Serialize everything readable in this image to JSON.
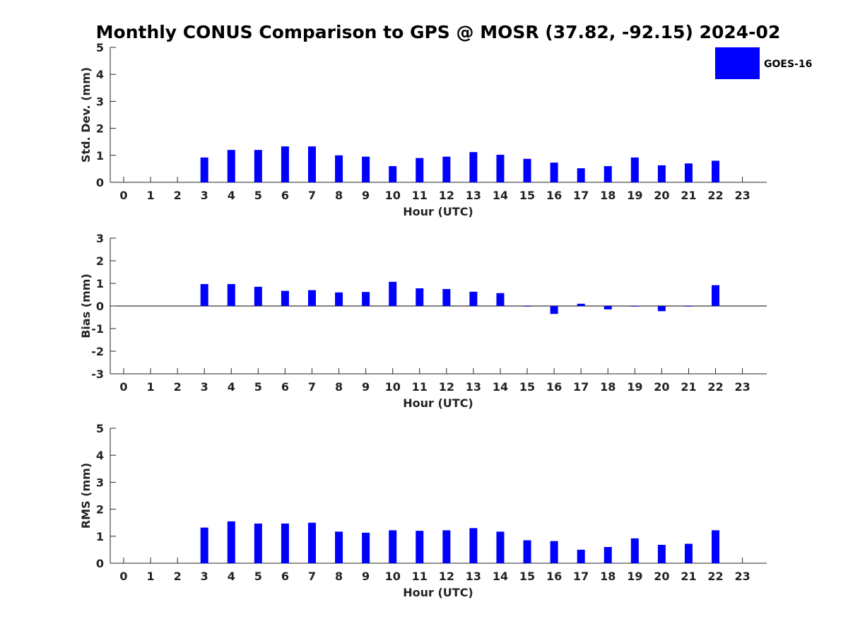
{
  "chart_data": {
    "title": "Monthly CONUS Comparison to GPS @ MOSR (37.82, -92.15) 2024-02",
    "type": "bar",
    "legend": {
      "position": "top-right",
      "entries": [
        "GOES-16"
      ]
    },
    "series_color": "#0000ff",
    "categories": [
      0,
      1,
      2,
      3,
      4,
      5,
      6,
      7,
      8,
      9,
      10,
      11,
      12,
      13,
      14,
      15,
      16,
      17,
      18,
      19,
      20,
      21,
      22,
      23
    ],
    "panels": [
      {
        "id": "std",
        "xlabel": "Hour (UTC)",
        "ylabel": "Std. Dev. (mm)",
        "ylim": [
          0,
          5
        ],
        "yticks": [
          0,
          1,
          2,
          3,
          4,
          5
        ],
        "values": [
          null,
          null,
          null,
          0.92,
          1.2,
          1.2,
          1.33,
          1.33,
          1.0,
          0.95,
          0.6,
          0.9,
          0.95,
          1.12,
          1.02,
          0.87,
          0.73,
          0.52,
          0.6,
          0.92,
          0.63,
          0.7,
          0.8,
          null
        ]
      },
      {
        "id": "bias",
        "xlabel": "Hour (UTC)",
        "ylabel": "Bias (mm)",
        "ylim": [
          -3,
          3
        ],
        "yticks": [
          -3,
          -2,
          -1,
          0,
          1,
          2,
          3
        ],
        "zero_line": true,
        "values": [
          null,
          null,
          null,
          0.97,
          0.97,
          0.85,
          0.67,
          0.7,
          0.6,
          0.62,
          1.07,
          0.78,
          0.75,
          0.63,
          0.57,
          0.0,
          -0.35,
          0.1,
          -0.15,
          0.0,
          -0.23,
          0.0,
          0.92,
          null
        ]
      },
      {
        "id": "rms",
        "xlabel": "Hour (UTC)",
        "ylabel": "RMS (mm)",
        "ylim": [
          0,
          5
        ],
        "yticks": [
          0,
          1,
          2,
          3,
          4,
          5
        ],
        "values": [
          null,
          null,
          null,
          1.32,
          1.55,
          1.47,
          1.47,
          1.5,
          1.17,
          1.13,
          1.22,
          1.2,
          1.22,
          1.3,
          1.17,
          0.85,
          0.82,
          0.5,
          0.6,
          0.92,
          0.68,
          0.72,
          1.22,
          null
        ]
      }
    ]
  }
}
